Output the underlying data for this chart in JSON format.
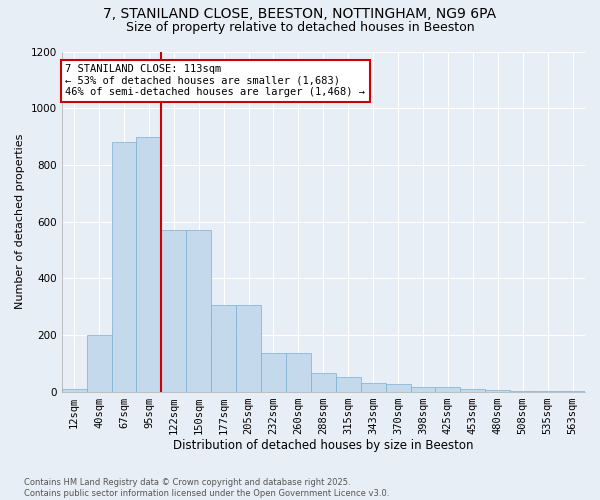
{
  "title1": "7, STANILAND CLOSE, BEESTON, NOTTINGHAM, NG9 6PA",
  "title2": "Size of property relative to detached houses in Beeston",
  "xlabel": "Distribution of detached houses by size in Beeston",
  "ylabel": "Number of detached properties",
  "categories": [
    "12sqm",
    "40sqm",
    "67sqm",
    "95sqm",
    "122sqm",
    "150sqm",
    "177sqm",
    "205sqm",
    "232sqm",
    "260sqm",
    "288sqm",
    "315sqm",
    "343sqm",
    "370sqm",
    "398sqm",
    "425sqm",
    "453sqm",
    "480sqm",
    "508sqm",
    "535sqm",
    "563sqm"
  ],
  "bar_heights": [
    10,
    200,
    880,
    900,
    570,
    570,
    305,
    305,
    135,
    135,
    65,
    50,
    30,
    25,
    15,
    15,
    10,
    5,
    2,
    2,
    2
  ],
  "bar_color": "#c5d9ed",
  "bar_edge_color": "#7aafd4",
  "vline_index": 4,
  "vline_color": "#cc0000",
  "annotation_text": "7 STANILAND CLOSE: 113sqm\n← 53% of detached houses are smaller (1,683)\n46% of semi-detached houses are larger (1,468) →",
  "annotation_box_facecolor": "#ffffff",
  "annotation_box_edgecolor": "#cc0000",
  "ylim": [
    0,
    1200
  ],
  "yticks": [
    0,
    200,
    400,
    600,
    800,
    1000,
    1200
  ],
  "background_color": "#e8eef5",
  "grid_color": "#d0d8e4",
  "footer": "Contains HM Land Registry data © Crown copyright and database right 2025.\nContains public sector information licensed under the Open Government Licence v3.0.",
  "title1_fontsize": 10,
  "title2_fontsize": 9,
  "xlabel_fontsize": 8.5,
  "ylabel_fontsize": 8,
  "tick_fontsize": 7.5,
  "annot_fontsize": 7.5,
  "footer_fontsize": 6
}
